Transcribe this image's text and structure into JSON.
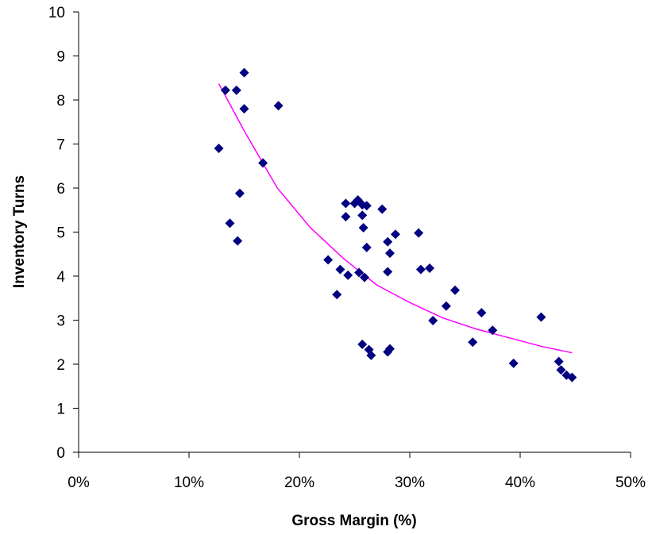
{
  "chart_data": {
    "type": "scatter",
    "xlabel": "Gross Margin (%)",
    "ylabel": "Inventory Turns",
    "xlim": [
      0,
      50
    ],
    "ylim": [
      0,
      10
    ],
    "x_ticks": [
      0,
      10,
      20,
      30,
      40,
      50
    ],
    "x_tick_labels": [
      "0%",
      "10%",
      "20%",
      "30%",
      "40%",
      "50%"
    ],
    "y_ticks": [
      0,
      1,
      2,
      3,
      4,
      5,
      6,
      7,
      8,
      9,
      10
    ],
    "y_tick_labels": [
      "0",
      "1",
      "2",
      "3",
      "4",
      "5",
      "6",
      "7",
      "8",
      "9",
      "10"
    ],
    "grid": false,
    "legend": "none",
    "colors": {
      "points": "#000080",
      "trendline": "#ff00ff"
    },
    "series": [
      {
        "points": [
          [
            12.7,
            6.9
          ],
          [
            13.3,
            8.22
          ],
          [
            13.7,
            5.2
          ],
          [
            14.3,
            8.22
          ],
          [
            14.4,
            4.8
          ],
          [
            14.6,
            5.88
          ],
          [
            15.0,
            8.62
          ],
          [
            15.0,
            7.8
          ],
          [
            16.7,
            6.57
          ],
          [
            18.1,
            7.87
          ],
          [
            22.6,
            4.37
          ],
          [
            23.4,
            3.58
          ],
          [
            23.7,
            4.15
          ],
          [
            24.2,
            5.65
          ],
          [
            24.2,
            5.35
          ],
          [
            24.4,
            4.02
          ],
          [
            25.0,
            5.65
          ],
          [
            25.3,
            5.73
          ],
          [
            25.4,
            4.08
          ],
          [
            25.7,
            5.62
          ],
          [
            25.7,
            5.38
          ],
          [
            25.8,
            5.1
          ],
          [
            25.9,
            3.97
          ],
          [
            26.1,
            4.65
          ],
          [
            26.1,
            5.6
          ],
          [
            25.7,
            2.45
          ],
          [
            26.3,
            2.33
          ],
          [
            26.5,
            2.2
          ],
          [
            27.5,
            5.52
          ],
          [
            28.0,
            4.78
          ],
          [
            28.0,
            4.1
          ],
          [
            28.2,
            4.52
          ],
          [
            28.2,
            2.35
          ],
          [
            28.0,
            2.28
          ],
          [
            28.7,
            4.95
          ],
          [
            30.8,
            4.98
          ],
          [
            31.0,
            4.15
          ],
          [
            31.8,
            4.18
          ],
          [
            32.1,
            2.99
          ],
          [
            33.3,
            3.32
          ],
          [
            34.1,
            3.68
          ],
          [
            35.7,
            2.5
          ],
          [
            36.5,
            3.17
          ],
          [
            37.5,
            2.77
          ],
          [
            39.4,
            2.02
          ],
          [
            41.9,
            3.07
          ],
          [
            43.5,
            2.06
          ],
          [
            43.7,
            1.87
          ],
          [
            44.2,
            1.75
          ],
          [
            44.7,
            1.7
          ]
        ]
      }
    ],
    "trendline": {
      "type": "power",
      "x": [
        12.7,
        15,
        18,
        21,
        24,
        27,
        30,
        33,
        36,
        39,
        42,
        44.7
      ],
      "y": [
        8.37,
        7.3,
        6.0,
        5.1,
        4.4,
        3.8,
        3.4,
        3.05,
        2.8,
        2.6,
        2.4,
        2.26
      ]
    }
  }
}
